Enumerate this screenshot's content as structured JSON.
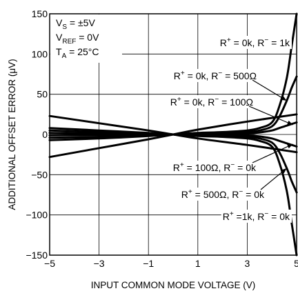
{
  "chart_data": {
    "type": "line",
    "title": "",
    "xlabel": "INPUT COMMON MODE VOLTAGE (V)",
    "ylabel": "ADDITIONAL OFFSET ERROR (μV)",
    "xlim": [
      -5,
      5
    ],
    "ylim": [
      -150,
      150
    ],
    "xticks": [
      -5,
      -3,
      -1,
      1,
      3,
      5
    ],
    "xtick_labels": [
      "−5",
      "−3",
      "−1",
      "1",
      "3",
      "5"
    ],
    "yticks": [
      150,
      100,
      50,
      0,
      -50,
      -100,
      -150
    ],
    "ytick_labels": [
      "150",
      "100",
      "50",
      "0",
      "−50",
      "−100",
      "−150"
    ],
    "grid": true,
    "conditions": [
      {
        "base": "V",
        "sub": "S",
        "rest": " = ±5V"
      },
      {
        "base": "V",
        "sub": "REF",
        "rest": " = 0V"
      },
      {
        "base": "T",
        "sub": "A",
        "rest": " = 25°C"
      }
    ],
    "series": [
      {
        "x": [
          -5,
          -3,
          -1,
          0,
          1,
          2,
          3,
          3.5,
          4,
          4.3,
          4.6,
          4.8,
          5
        ],
        "y": [
          -7,
          -5,
          -2,
          0,
          2,
          3,
          5,
          8,
          15,
          35,
          70,
          110,
          150
        ]
      },
      {
        "x": [
          -5,
          -3,
          -1,
          0,
          1,
          2,
          3,
          3.5,
          4,
          4.3,
          4.6,
          4.8,
          5
        ],
        "y": [
          -4,
          -3,
          -1,
          0,
          1,
          2,
          3,
          5,
          10,
          22,
          42,
          58,
          72
        ]
      },
      {
        "x": [
          -5,
          -3,
          -1,
          0,
          1,
          2,
          3,
          3.5,
          4,
          4.3,
          4.6,
          4.8,
          5
        ],
        "y": [
          -1,
          -0.6,
          -0.2,
          0,
          0.3,
          0.6,
          1.2,
          2.5,
          5,
          8,
          11,
          13,
          15
        ]
      },
      {
        "x": [
          -5,
          -3,
          -1,
          0,
          1,
          2,
          3,
          3.5,
          4,
          4.3,
          4.6,
          4.8,
          5
        ],
        "y": [
          2,
          1.2,
          0.3,
          0,
          -0.3,
          -0.6,
          -1.2,
          -2.5,
          -5,
          -8,
          -11,
          -13,
          -15
        ]
      },
      {
        "x": [
          -5,
          -3,
          -1,
          0,
          1,
          2,
          3,
          3.5,
          4,
          4.3,
          4.6,
          4.8,
          5
        ],
        "y": [
          5,
          3,
          1,
          0,
          -1,
          -2,
          -3,
          -5,
          -10,
          -22,
          -42,
          -58,
          -72
        ]
      },
      {
        "x": [
          -5,
          -3,
          -1,
          0,
          1,
          2,
          3,
          3.5,
          4,
          4.3,
          4.6,
          4.8,
          5
        ],
        "y": [
          8,
          5,
          2,
          0,
          -2,
          -3,
          -5,
          -8,
          -15,
          -35,
          -70,
          -110,
          -150
        ]
      },
      {
        "x": [
          -5,
          -3,
          -1,
          0,
          1,
          3,
          5
        ],
        "y": [
          23,
          14,
          5,
          0,
          -5,
          -13,
          -22
        ]
      },
      {
        "x": [
          -5,
          -3,
          -1,
          0,
          1,
          3,
          5
        ],
        "y": [
          -28,
          -17,
          -6,
          0,
          6,
          16,
          25
        ]
      }
    ],
    "annotations": [
      {
        "parts": [
          "R",
          "+",
          " = 0k, R",
          "−",
          " = 1k"
        ],
        "target": [
          4.95,
          130
        ]
      },
      {
        "parts": [
          "R",
          "+",
          " = 0k, R",
          "−",
          " = 500Ω"
        ],
        "target": [
          4.6,
          42
        ]
      },
      {
        "parts": [
          "R",
          "+",
          " = 0k, R",
          "−",
          " = 100Ω"
        ],
        "target": [
          4.85,
          12
        ]
      },
      {
        "parts": [
          "R",
          "+",
          " = 100Ω, R",
          "−",
          " = 0k"
        ],
        "target": [
          4.85,
          -12
        ]
      },
      {
        "parts": [
          "R",
          "+",
          " = 500Ω, R",
          "−",
          " = 0k"
        ],
        "target": [
          4.6,
          -42
        ]
      },
      {
        "parts": [
          "R",
          "+",
          " =1k, R",
          "−",
          " = 0k"
        ],
        "target": [
          4.95,
          -130
        ]
      }
    ]
  }
}
